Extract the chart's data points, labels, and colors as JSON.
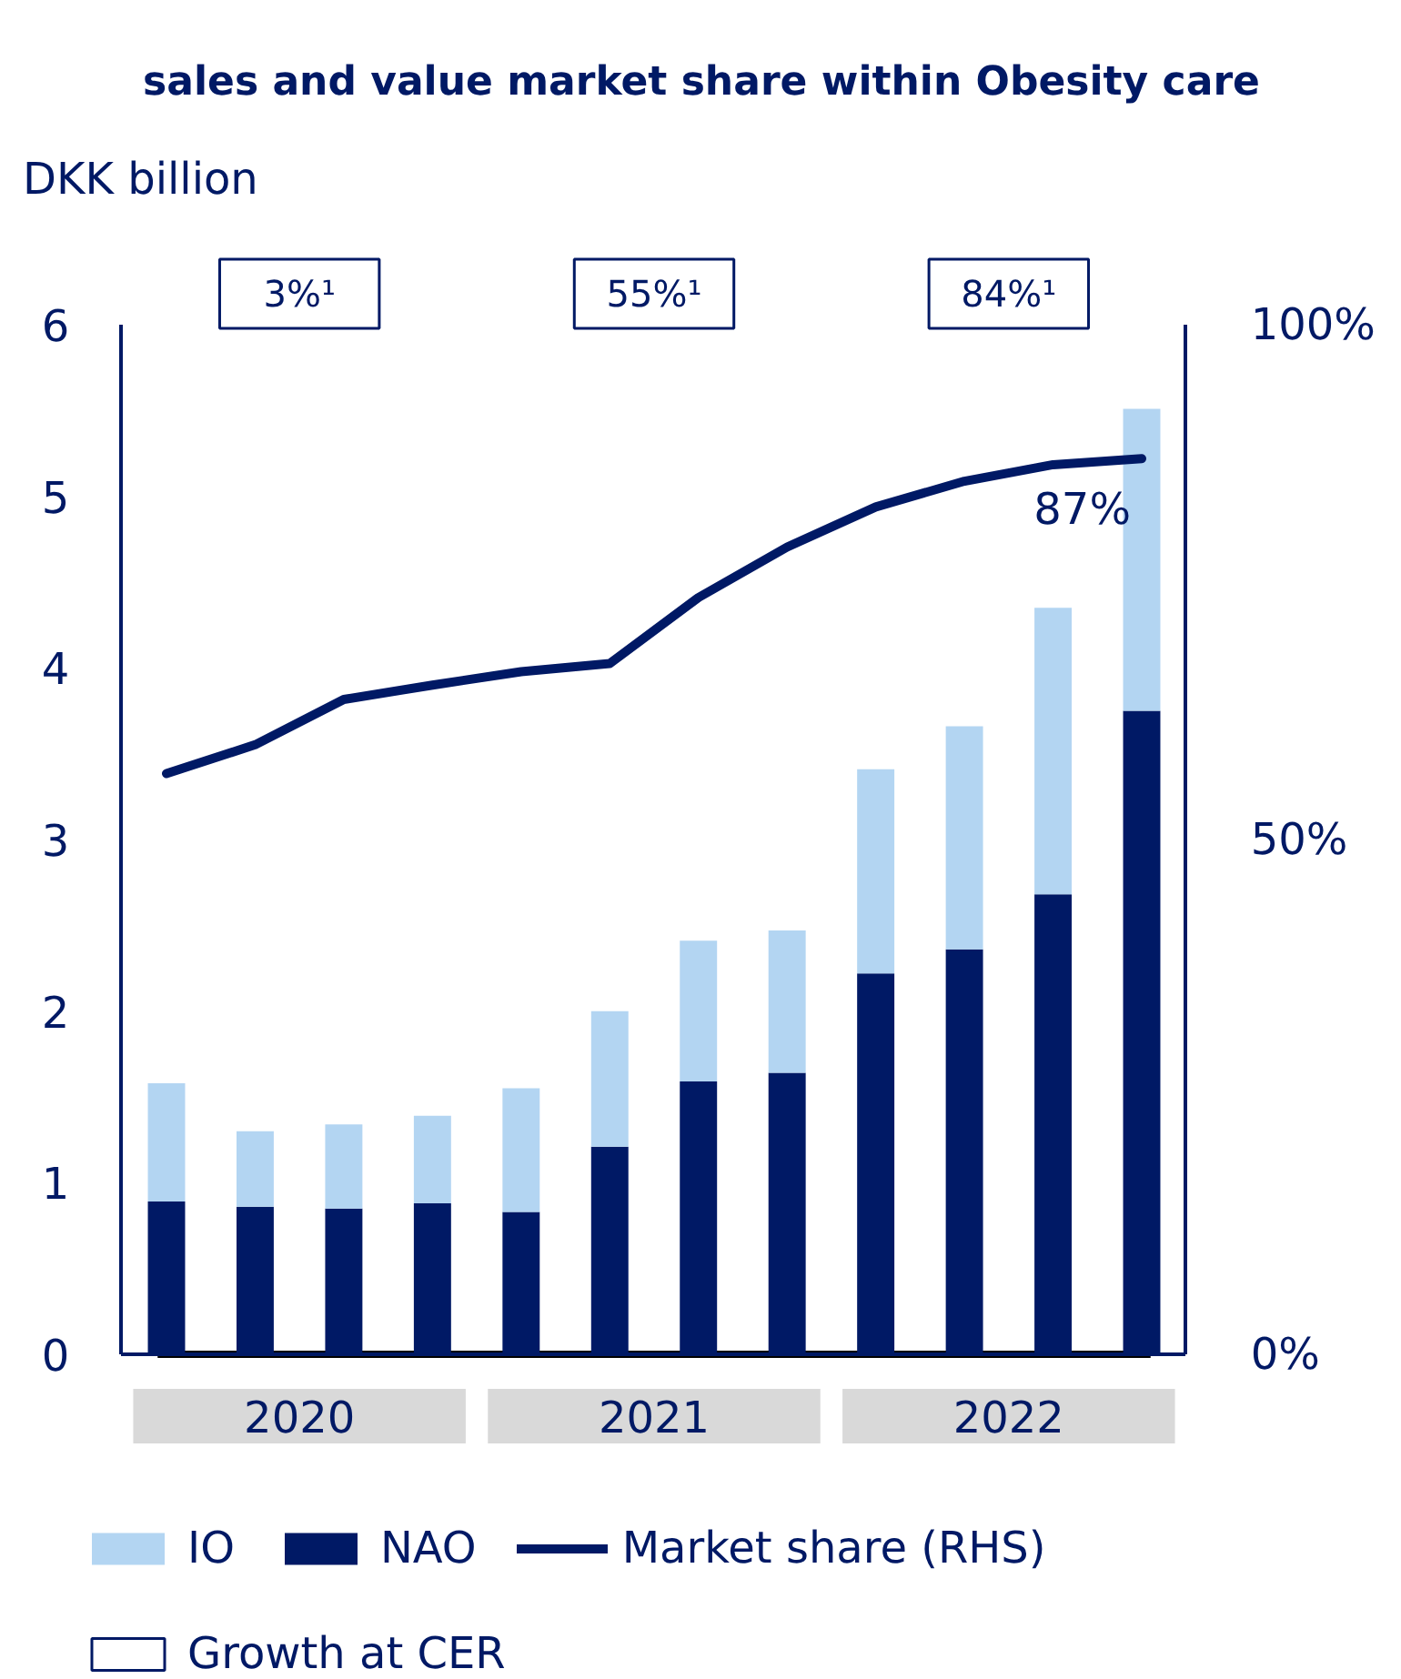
{
  "chart_data": {
    "type": "bar",
    "title": "sales and value market share within Obesity care",
    "ylabel": "DKK billion",
    "categories": [
      null,
      null,
      null,
      null,
      null,
      null,
      null,
      null,
      null,
      null,
      null,
      null
    ],
    "stacked": true,
    "series": [
      {
        "name": "NAO",
        "color": "#001965",
        "values": [
          0.89,
          0.86,
          0.85,
          0.88,
          0.83,
          1.21,
          1.59,
          1.64,
          2.22,
          2.36,
          2.68,
          3.75
        ]
      },
      {
        "name": "IO",
        "color": "#b3d5f2",
        "values": [
          0.69,
          0.44,
          0.49,
          0.51,
          0.72,
          0.79,
          0.82,
          0.83,
          1.19,
          1.3,
          1.67,
          1.76
        ]
      },
      {
        "name": "Market share (RHS)",
        "type": "line",
        "axis": "y2",
        "color": "#001965",
        "values": [
          56.4,
          59.2,
          63.6,
          65.0,
          66.3,
          67.1,
          73.5,
          78.4,
          82.3,
          84.8,
          86.4,
          87
        ],
        "value_labels": [
          null,
          null,
          null,
          null,
          null,
          null,
          null,
          null,
          null,
          null,
          null,
          "87%"
        ]
      }
    ],
    "ylim": [
      0,
      6
    ],
    "yticks": [
      0,
      1,
      2,
      3,
      4,
      5,
      6
    ],
    "y2lim": [
      0,
      100
    ],
    "y2ticks": [
      {
        "value": 0,
        "label": "0%"
      },
      {
        "value": 50,
        "label": "50%"
      },
      {
        "value": 100,
        "label": "100%"
      }
    ],
    "tick_labels": "y",
    "grid": false,
    "legend": "bottom",
    "line_style": "solid",
    "marker": "none",
    "annotations": [
      "2020",
      "2021",
      "2022",
      "3%¹",
      "55%¹",
      "84%¹",
      "Growth at CER"
    ]
  }
}
